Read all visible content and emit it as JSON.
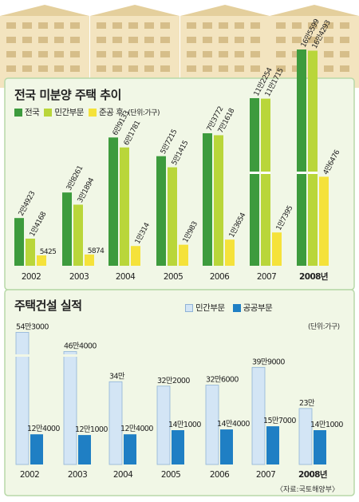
{
  "colors": {
    "national": "#3d9b3d",
    "private_unsold": "#b9d63a",
    "after_completion": "#f5e23a",
    "private_build": "#d3e5f5",
    "public_build": "#1f7fc4",
    "panel_bg": "#f1f7e6",
    "panel_border": "#b8d9a8"
  },
  "chart_data": [
    {
      "type": "bar",
      "title": "전국 미분양 주택 추이",
      "unit": "(단위:가구)",
      "categories": [
        "2002",
        "2003",
        "2004",
        "2005",
        "2006",
        "2007",
        "2008년"
      ],
      "legend": [
        "전국",
        "민간부문",
        "준공 후"
      ],
      "series": [
        {
          "name": "전국",
          "values": [
            24923,
            38261,
            69133,
            57215,
            73772,
            112254,
            165599
          ],
          "labels": [
            "2만4923",
            "3만8261",
            "6만9133",
            "5만7215",
            "7만3772",
            "11만2254",
            "16만5599"
          ]
        },
        {
          "name": "민간부문",
          "values": [
            14168,
            31894,
            61781,
            51415,
            71618,
            111715,
            164293
          ],
          "labels": [
            "1만4168",
            "3만1894",
            "6만1781",
            "5만1415",
            "7만1618",
            "11만1715",
            "16만4293"
          ]
        },
        {
          "name": "준공 후",
          "values": [
            5425,
            5874,
            10314,
            10983,
            13654,
            17395,
            46476
          ],
          "labels": [
            "5425",
            "5874",
            "1만314",
            "1만983",
            "1만3654",
            "1만7395",
            "4만6476"
          ]
        }
      ]
    },
    {
      "type": "bar",
      "title": "주택건설 실적",
      "unit": "(단위:가구)",
      "categories": [
        "2002",
        "2003",
        "2004",
        "2005",
        "2006",
        "2007",
        "2008년"
      ],
      "legend": [
        "민간부문",
        "공공부문"
      ],
      "series": [
        {
          "name": "민간부문",
          "values": [
            543000,
            464000,
            340000,
            322000,
            326000,
            399000,
            230000
          ],
          "labels": [
            "54만3000",
            "46만4000",
            "34만",
            "32만2000",
            "32만6000",
            "39만9000",
            "23만"
          ]
        },
        {
          "name": "공공부문",
          "values": [
            124000,
            121000,
            124000,
            141000,
            144000,
            157000,
            141000
          ],
          "labels": [
            "12만4000",
            "12만1000",
            "12만4000",
            "14만1000",
            "14만4000",
            "15만7000",
            "14만1000"
          ]
        }
      ]
    }
  ],
  "source": "〈자료:국토해양부〉"
}
